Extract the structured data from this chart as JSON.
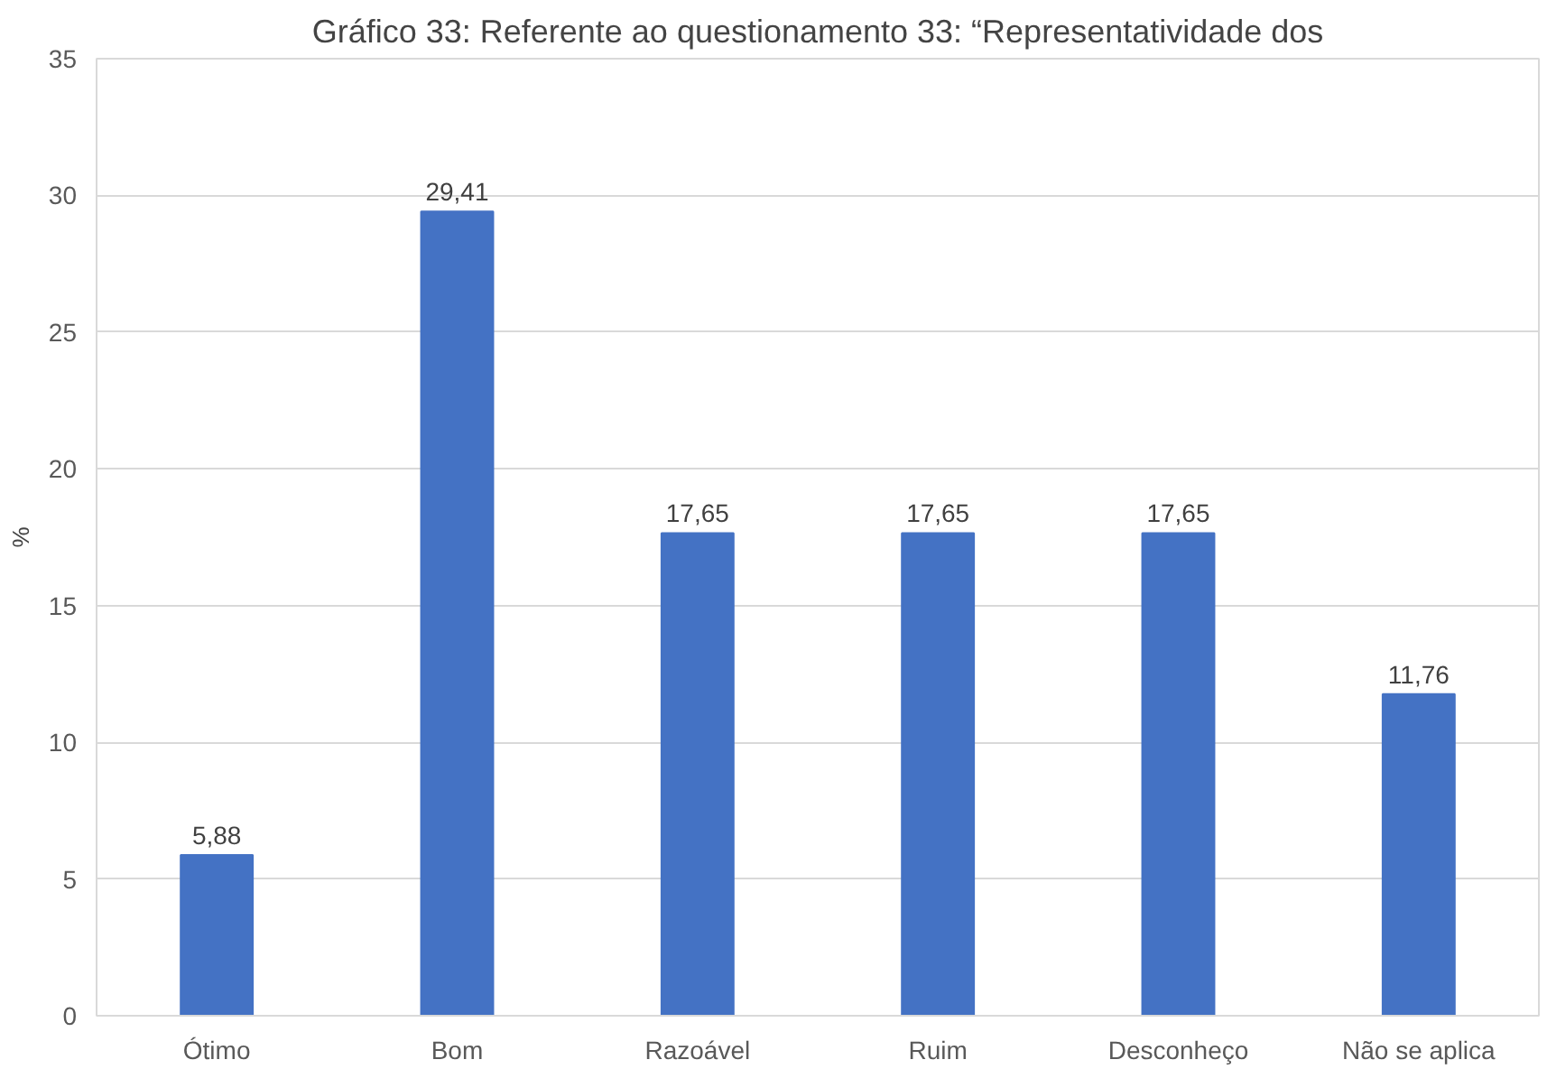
{
  "chart_data": {
    "type": "bar",
    "title": "Gráfico 33: Referente ao questionamento 33: “Representatividade dos",
    "ylabel": "%",
    "categories": [
      "Ótimo",
      "Bom",
      "Razoável",
      "Ruim",
      "Desconheço",
      "Não se aplica"
    ],
    "values": [
      5.88,
      29.41,
      17.65,
      17.65,
      17.65,
      11.76
    ],
    "value_labels": [
      "5,88",
      "29,41",
      "17,65",
      "17,65",
      "17,65",
      "11,76"
    ],
    "color": "#4472c4",
    "ylim": [
      0,
      35
    ],
    "yticks": [
      0,
      5,
      10,
      15,
      20,
      25,
      30,
      35
    ],
    "grid": "y"
  }
}
